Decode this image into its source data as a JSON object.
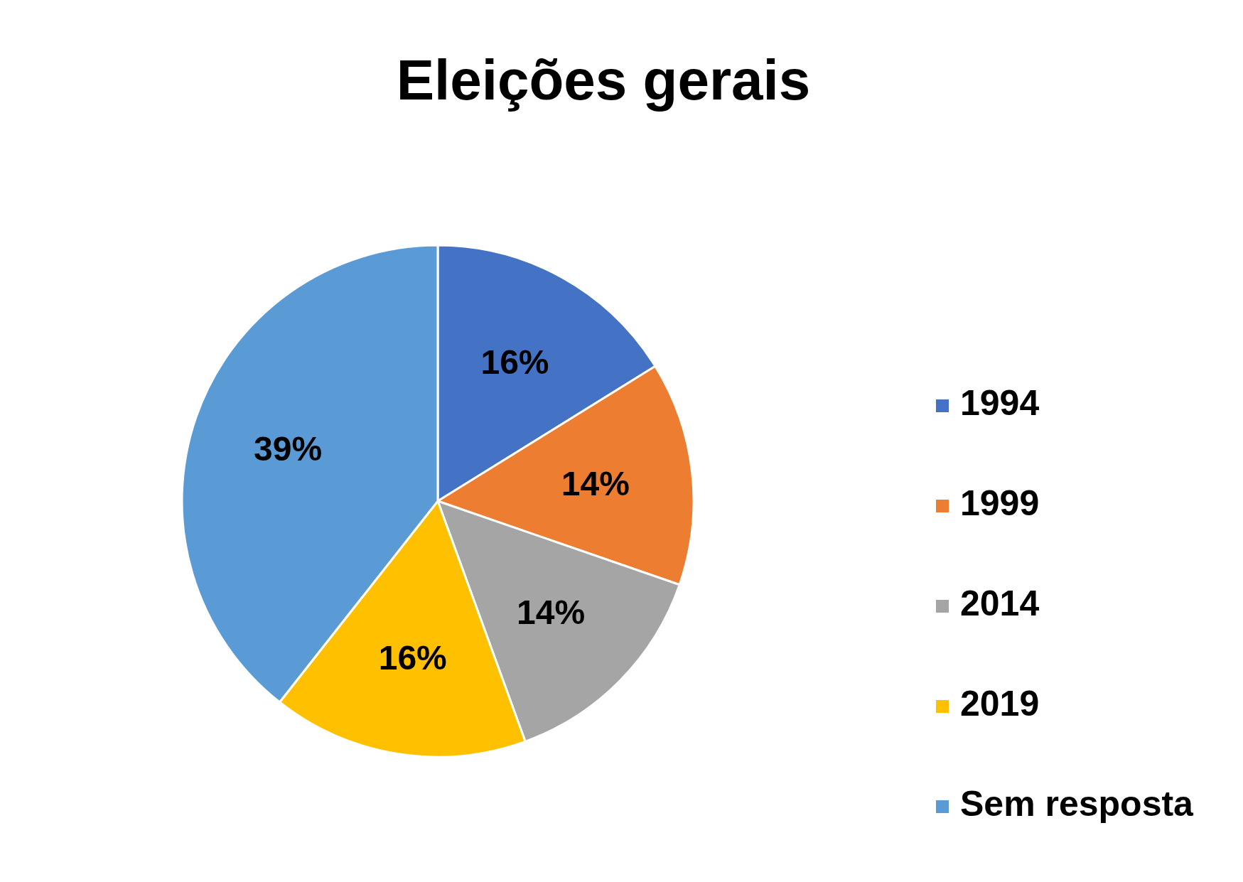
{
  "chart_data": {
    "type": "pie",
    "title": "Eleições gerais",
    "categories": [
      "1994",
      "1999",
      "2014",
      "2019",
      "Sem resposta"
    ],
    "values": [
      16,
      14,
      14,
      16,
      39
    ],
    "colors": [
      "#4472c4",
      "#ed7d31",
      "#a5a5a5",
      "#ffc000",
      "#5b9bd5"
    ],
    "value_labels": [
      "16%",
      "14%",
      "14%",
      "16%",
      "39%"
    ],
    "legend": "right"
  }
}
